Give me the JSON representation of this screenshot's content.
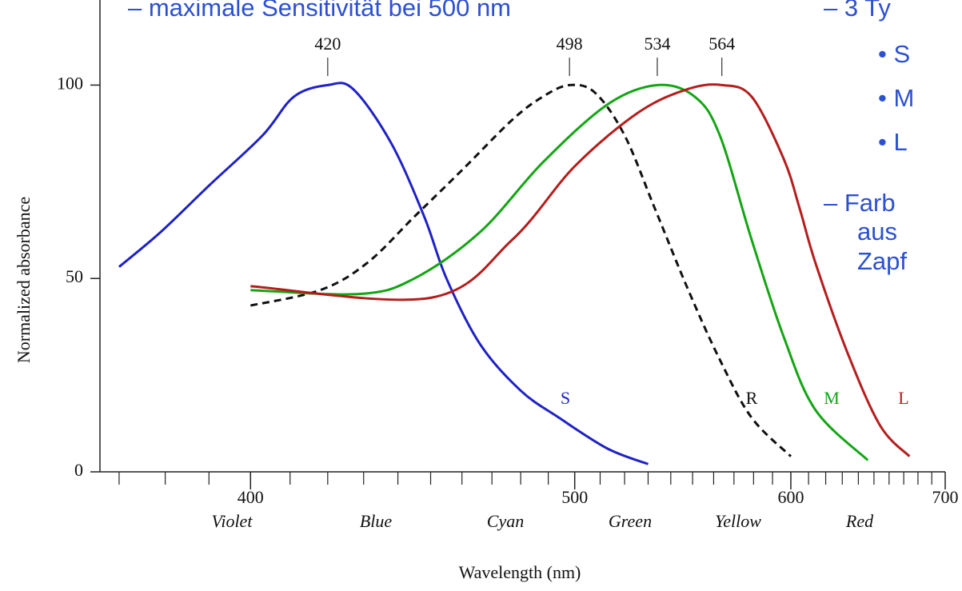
{
  "slide_text": [
    "– maximale Sensitivität bei 500 nm",
    "– 3 Ty",
    "• S",
    "• M",
    "• L",
    "– Farb",
    "aus",
    "Zapf"
  ],
  "chart_data": {
    "type": "line",
    "xlabel": "Wavelength (nm)",
    "ylabel": "Normalized absorbance",
    "xscale": "reciprocal",
    "xlim": [
      366,
      700
    ],
    "ylim": [
      0,
      122
    ],
    "xticks": [
      400,
      500,
      600,
      700
    ],
    "xminor_ticks": [
      370,
      380,
      390,
      410,
      420,
      430,
      440,
      450,
      460,
      470,
      480,
      490,
      510,
      520,
      530,
      540,
      550,
      560,
      570,
      580,
      590,
      610,
      620,
      630,
      640,
      650,
      660,
      670,
      680,
      690
    ],
    "yticks": [
      0,
      50,
      100
    ],
    "peaks": [
      420,
      498,
      534,
      564
    ],
    "color_names": [
      "Violet",
      "Blue",
      "Cyan",
      "Green",
      "Yellow",
      "Red"
    ],
    "series": [
      {
        "name": "S",
        "color": "#1f22c4",
        "dashed": false,
        "x": [
          370,
          379,
          390,
          403,
          411,
          420,
          427,
          438,
          448,
          455,
          466,
          480,
          494,
          513,
          530
        ],
        "values": [
          53,
          62,
          74,
          87,
          97,
          100,
          99,
          85,
          66,
          50,
          33,
          21,
          14,
          6,
          2
        ]
      },
      {
        "name": "R",
        "color": "#111111",
        "dashed": true,
        "x": [
          400,
          418,
          431,
          445,
          460,
          477,
          488,
          498,
          508,
          520,
          533,
          548,
          563,
          579,
          600
        ],
        "values": [
          43,
          47,
          54,
          66,
          78,
          91,
          97,
          100,
          98,
          87,
          68,
          47,
          29,
          14,
          4
        ]
      },
      {
        "name": "M",
        "color": "#14a514",
        "dashed": false,
        "x": [
          400,
          429,
          445,
          466,
          488,
          513,
          534,
          551,
          563,
          579,
          596,
          614,
          646
        ],
        "values": [
          47,
          46,
          50,
          62,
          80,
          95,
          100,
          97,
          87,
          60,
          35,
          16,
          3
        ]
      },
      {
        "name": "L",
        "color": "#b51d1d",
        "dashed": false,
        "x": [
          400,
          450,
          477,
          500,
          526,
          548,
          564,
          579,
          596,
          605,
          614,
          633,
          654,
          674
        ],
        "values": [
          48,
          45,
          60,
          79,
          93,
          99,
          100,
          97,
          81,
          68,
          54,
          31,
          12,
          4
        ]
      }
    ]
  }
}
